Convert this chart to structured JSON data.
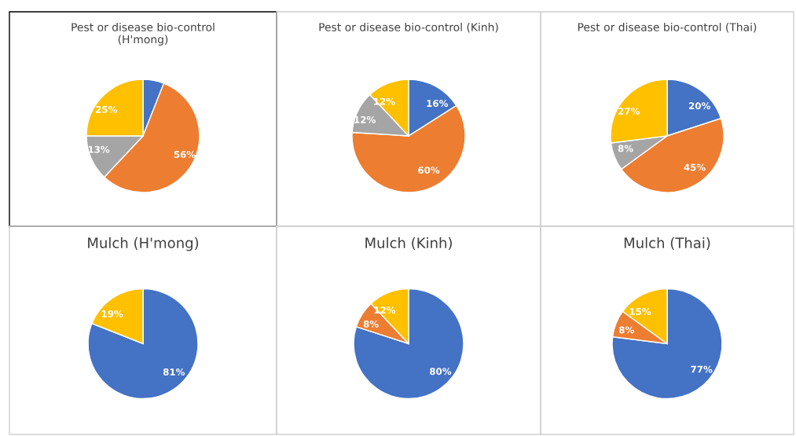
{
  "chart_data": [
    {
      "type": "pie",
      "title": "Pest or disease bio-control\n(H'mong)",
      "categories": [
        null,
        null,
        null,
        null
      ],
      "values": [
        6,
        56,
        13,
        25
      ],
      "colors": [
        "#4472c4",
        "#ed7d31",
        "#a5a5a5",
        "#ffc000"
      ],
      "value_labels": [
        null,
        "56%",
        "13%",
        "25%"
      ]
    },
    {
      "type": "pie",
      "title": "Pest or disease bio-control (Kinh)",
      "categories": [
        null,
        null,
        null,
        null
      ],
      "values": [
        16,
        60,
        12,
        12
      ],
      "colors": [
        "#4472c4",
        "#ed7d31",
        "#a5a5a5",
        "#ffc000"
      ],
      "value_labels": [
        "16%",
        "60%",
        "12%",
        "12%"
      ]
    },
    {
      "type": "pie",
      "title": "Pest or disease bio-control (Thai)",
      "categories": [
        null,
        null,
        null,
        null
      ],
      "values": [
        20,
        45,
        8,
        27
      ],
      "colors": [
        "#4472c4",
        "#ed7d31",
        "#a5a5a5",
        "#ffc000"
      ],
      "value_labels": [
        "20%",
        "45%",
        "8%",
        "27%"
      ]
    },
    {
      "type": "pie",
      "title": "Mulch (H'mong)",
      "categories": [
        null,
        null
      ],
      "values": [
        81,
        19
      ],
      "colors": [
        "#4472c4",
        "#ffc000"
      ],
      "value_labels": [
        "81%",
        "19%"
      ]
    },
    {
      "type": "pie",
      "title": "Mulch (Kinh)",
      "categories": [
        null,
        null,
        null
      ],
      "values": [
        80,
        8,
        12
      ],
      "colors": [
        "#4472c4",
        "#ed7d31",
        "#ffc000"
      ],
      "value_labels": [
        "80%",
        "8%",
        "12%"
      ]
    },
    {
      "type": "pie",
      "title": "Mulch (Thai)",
      "categories": [
        null,
        null,
        null
      ],
      "values": [
        77,
        8,
        15
      ],
      "colors": [
        "#4472c4",
        "#ed7d31",
        "#ffc000"
      ],
      "value_labels": [
        "77%",
        "8%",
        "15%"
      ]
    }
  ]
}
